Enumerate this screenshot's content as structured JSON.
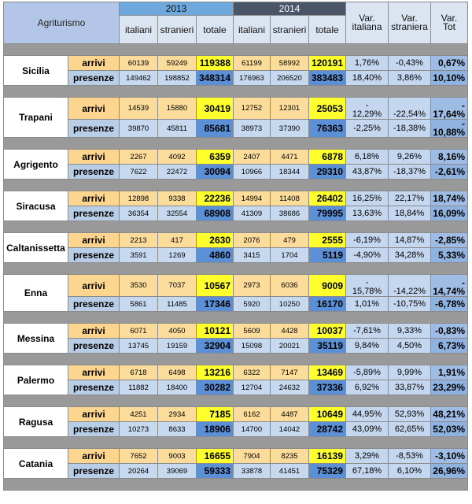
{
  "header": {
    "title": "Agriturismo",
    "year_a": "2013",
    "year_b": "2014",
    "cols": [
      "italiani",
      "stranieri",
      "totale",
      "italiani",
      "stranieri",
      "totale"
    ],
    "var_it": "Var. italiana",
    "var_str": "Var. straniera",
    "var_tot": "Var. Tot",
    "arrivi_label": "arrivi",
    "presenze_label": "presenze"
  },
  "rows": [
    {
      "city": "Sicilia",
      "a": [
        "60139",
        "59249",
        "119388",
        "61199",
        "58992",
        "120191",
        "1,76%",
        "-0,43%",
        "0,67%"
      ],
      "p": [
        "149462",
        "198852",
        "348314",
        "176963",
        "206520",
        "383483",
        "18,40%",
        "3,86%",
        "10,10%"
      ]
    },
    {
      "city": "Trapani",
      "a": [
        "14539",
        "15880",
        "30419",
        "12752",
        "12301",
        "25053",
        "-\n12,29%",
        "-22,54%",
        "-\n17,64%"
      ],
      "p": [
        "39870",
        "45811",
        "85681",
        "38973",
        "37390",
        "76363",
        "-2,25%",
        "-18,38%",
        "-\n10,88%"
      ]
    },
    {
      "city": "Agrigento",
      "a": [
        "2267",
        "4092",
        "6359",
        "2407",
        "4471",
        "6878",
        "6,18%",
        "9,26%",
        "8,16%"
      ],
      "p": [
        "7622",
        "22472",
        "30094",
        "10966",
        "18344",
        "29310",
        "43,87%",
        "-18,37%",
        "-2,61%"
      ]
    },
    {
      "city": "Siracusa",
      "a": [
        "12898",
        "9338",
        "22236",
        "14994",
        "11408",
        "26402",
        "16,25%",
        "22,17%",
        "18,74%"
      ],
      "p": [
        "36354",
        "32554",
        "68908",
        "41309",
        "38686",
        "79995",
        "13,63%",
        "18,84%",
        "16,09%"
      ]
    },
    {
      "city": "Caltanissetta",
      "a": [
        "2213",
        "417",
        "2630",
        "2076",
        "479",
        "2555",
        "-6,19%",
        "14,87%",
        "-2,85%"
      ],
      "p": [
        "3591",
        "1269",
        "4860",
        "3415",
        "1704",
        "5119",
        "-4,90%",
        "34,28%",
        "5,33%"
      ]
    },
    {
      "city": "Enna",
      "a": [
        "3530",
        "7037",
        "10567",
        "2973",
        "6036",
        "9009",
        "-\n15,78%",
        "-14,22%",
        "-\n14,74%"
      ],
      "p": [
        "5861",
        "11485",
        "17346",
        "5920",
        "10250",
        "16170",
        "1,01%",
        "-10,75%",
        "-6,78%"
      ]
    },
    {
      "city": "Messina",
      "a": [
        "6071",
        "4050",
        "10121",
        "5609",
        "4428",
        "10037",
        "-7,61%",
        "9,33%",
        "-0,83%"
      ],
      "p": [
        "13745",
        "19159",
        "32904",
        "15098",
        "20021",
        "35119",
        "9,84%",
        "4,50%",
        "6,73%"
      ]
    },
    {
      "city": "Palermo",
      "a": [
        "6718",
        "6498",
        "13216",
        "6322",
        "7147",
        "13469",
        "-5,89%",
        "9,99%",
        "1,91%"
      ],
      "p": [
        "11882",
        "18400",
        "30282",
        "12704",
        "24632",
        "37336",
        "6,92%",
        "33,87%",
        "23,29%"
      ]
    },
    {
      "city": "Ragusa",
      "a": [
        "4251",
        "2934",
        "7185",
        "6162",
        "4487",
        "10649",
        "44,95%",
        "52,93%",
        "48,21%"
      ],
      "p": [
        "10273",
        "8633",
        "18906",
        "14700",
        "14042",
        "28742",
        "43,09%",
        "62,65%",
        "52,03%"
      ]
    },
    {
      "city": "Catania",
      "a": [
        "7652",
        "9003",
        "16655",
        "7904",
        "8235",
        "16139",
        "3,29%",
        "-8,53%",
        "-3,10%"
      ],
      "p": [
        "20264",
        "39069",
        "59333",
        "33878",
        "41451",
        "75329",
        "67,18%",
        "6,10%",
        "26,96%"
      ]
    }
  ]
}
